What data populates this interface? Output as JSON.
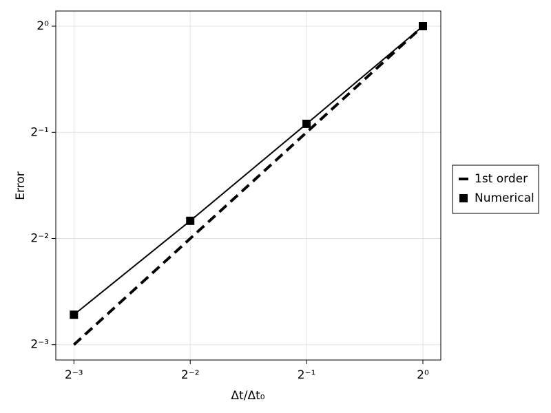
{
  "chart_data": {
    "type": "line",
    "xlabel": "Δt/Δt₀",
    "ylabel": "Error",
    "xscale": "log2",
    "yscale": "log2",
    "grid": true,
    "legend": "right",
    "xlim": [
      0.1122,
      1.1126
    ],
    "ylim": [
      0.1131,
      1.104
    ],
    "xticks": [
      {
        "value": 0.125,
        "label": "2⁻³"
      },
      {
        "value": 0.25,
        "label": "2⁻²"
      },
      {
        "value": 0.5,
        "label": "2⁻¹"
      },
      {
        "value": 1,
        "label": "2⁰"
      }
    ],
    "yticks": [
      {
        "value": 0.125,
        "label": "2⁻³"
      },
      {
        "value": 0.25,
        "label": "2⁻²"
      },
      {
        "value": 0.5,
        "label": "2⁻¹"
      },
      {
        "value": 1,
        "label": "2⁰"
      }
    ],
    "series": [
      {
        "name": "1st order",
        "color": "#000000",
        "linestyle": "dashed",
        "x": [
          0.125,
          1
        ],
        "values": [
          0.125,
          1
        ]
      },
      {
        "name": "Numerical",
        "color": "#000000",
        "linestyle": "solid",
        "marker": "square",
        "x": [
          0.125,
          0.25,
          0.5,
          1
        ],
        "values": [
          0.152,
          0.2806,
          0.5285,
          1
        ]
      }
    ]
  }
}
